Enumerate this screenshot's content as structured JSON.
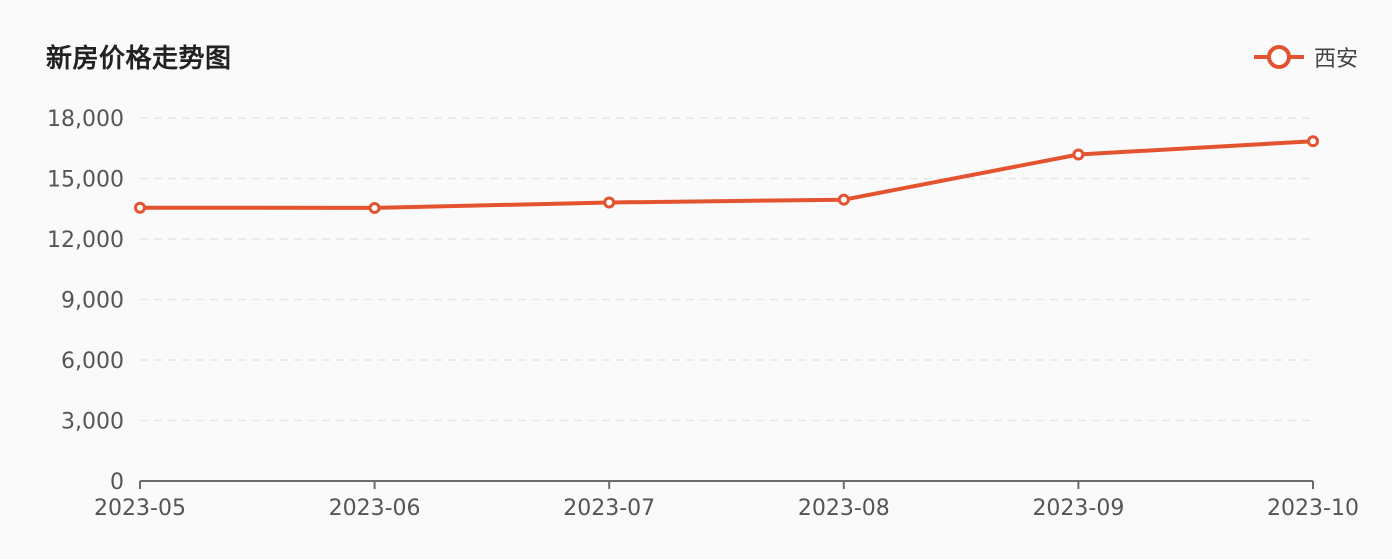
{
  "title": "新房价格走势图",
  "legend": {
    "label": "西安",
    "color": "#e4532f"
  },
  "chart_data": {
    "type": "line",
    "title": "新房价格走势图",
    "x": [
      "2023-05",
      "2023-06",
      "2023-07",
      "2023-08",
      "2023-09",
      "2023-10"
    ],
    "series": [
      {
        "name": "西安",
        "values": [
          13550,
          13540,
          13810,
          13950,
          16190,
          16850
        ],
        "color": "#e4532f"
      }
    ],
    "y_ticks": [
      "0",
      "3,000",
      "6,000",
      "9,000",
      "12,000",
      "15,000",
      "18,000"
    ],
    "ylim": [
      0,
      18000
    ],
    "grid": true,
    "legend_position": "top-right"
  },
  "colors": {
    "background": "#fafafa",
    "axis": "#6b6b6b",
    "grid": "#e6e6e6",
    "tick_text": "#555555"
  }
}
